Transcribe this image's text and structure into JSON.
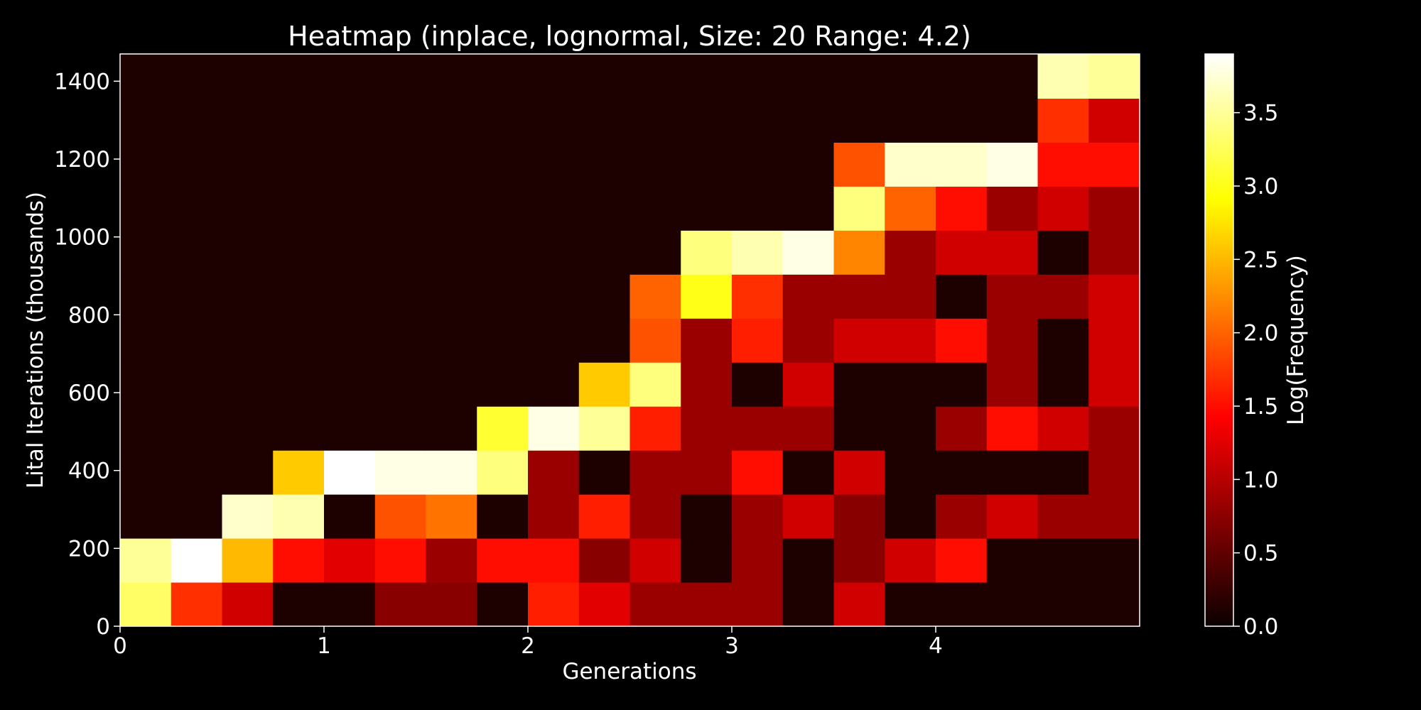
{
  "chart_data": {
    "type": "heatmap",
    "title": "Heatmap (inplace, lognormal, Size: 20 Range: 4.2)",
    "xlabel": "Generations",
    "ylabel": "Lital Iterations (thousands)",
    "colorbar_label": "Log(Frequency)",
    "colormap": "hot",
    "xlim": [
      0,
      5
    ],
    "ylim": [
      0,
      1470
    ],
    "clim": [
      0,
      3.9
    ],
    "x_ticks": [
      0,
      1,
      2,
      3,
      4
    ],
    "y_ticks": [
      0,
      200,
      400,
      600,
      800,
      1000,
      1200,
      1400
    ],
    "colorbar_ticks": [
      0.0,
      0.5,
      1.0,
      1.5,
      2.0,
      2.5,
      3.0,
      3.5
    ],
    "colorbar_tick_labels": [
      "0.0",
      "0.5",
      "1.0",
      "1.5",
      "2.0",
      "2.5",
      "3.0",
      "3.5"
    ],
    "x_bins": 20,
    "y_bins": 13,
    "x_bin_width": 0.25,
    "y_bin_width": 113,
    "values": [
      [
        3.3,
        1.7,
        1.1,
        0.1,
        0.1,
        0.7,
        0.7,
        0.1,
        1.6,
        1.2,
        0.8,
        0.8,
        0.8,
        0.1,
        1.1,
        0.1,
        0.1,
        0.1,
        0.1,
        0.1
      ],
      [
        3.5,
        3.9,
        2.5,
        1.5,
        1.2,
        1.5,
        0.8,
        1.5,
        1.5,
        0.7,
        1.1,
        0.1,
        0.8,
        0.1,
        0.7,
        1.1,
        1.5,
        0.1,
        0.1,
        0.1
      ],
      [
        0.1,
        0.1,
        3.7,
        3.6,
        0.1,
        1.9,
        2.1,
        0.1,
        0.8,
        1.6,
        0.8,
        0.1,
        0.8,
        1.1,
        0.7,
        0.1,
        0.8,
        1.1,
        0.8,
        0.8
      ],
      [
        0.1,
        0.1,
        0.1,
        2.6,
        3.9,
        3.8,
        3.8,
        3.4,
        0.8,
        0.1,
        0.8,
        0.8,
        1.5,
        0.1,
        1.1,
        0.1,
        0.1,
        0.1,
        0.1,
        0.8
      ],
      [
        0.1,
        0.1,
        0.1,
        0.1,
        0.1,
        0.1,
        0.1,
        3.1,
        3.8,
        3.5,
        1.6,
        0.8,
        0.8,
        0.8,
        0.1,
        0.1,
        0.8,
        1.5,
        1.1,
        0.8
      ],
      [
        0.1,
        0.1,
        0.1,
        0.1,
        0.1,
        0.1,
        0.1,
        0.1,
        0.1,
        2.6,
        3.4,
        0.8,
        0.1,
        1.1,
        0.1,
        0.1,
        0.1,
        0.8,
        0.1,
        1.1
      ],
      [
        0.1,
        0.1,
        0.1,
        0.1,
        0.1,
        0.1,
        0.1,
        0.1,
        0.1,
        0.1,
        1.9,
        0.8,
        1.6,
        0.8,
        1.1,
        1.1,
        1.5,
        0.8,
        0.1,
        1.1
      ],
      [
        0.1,
        0.1,
        0.1,
        0.1,
        0.1,
        0.1,
        0.1,
        0.1,
        0.1,
        0.1,
        2.0,
        3.0,
        1.7,
        0.8,
        0.8,
        0.8,
        0.1,
        0.8,
        0.8,
        1.1
      ],
      [
        0.1,
        0.1,
        0.1,
        0.1,
        0.1,
        0.1,
        0.1,
        0.1,
        0.1,
        0.1,
        0.1,
        3.4,
        3.6,
        3.8,
        2.2,
        0.8,
        1.1,
        1.1,
        0.1,
        0.8
      ],
      [
        0.1,
        0.1,
        0.1,
        0.1,
        0.1,
        0.1,
        0.1,
        0.1,
        0.1,
        0.1,
        0.1,
        0.1,
        0.1,
        0.1,
        3.4,
        2.0,
        1.5,
        0.8,
        1.1,
        0.8
      ],
      [
        0.1,
        0.1,
        0.1,
        0.1,
        0.1,
        0.1,
        0.1,
        0.1,
        0.1,
        0.1,
        0.1,
        0.1,
        0.1,
        0.1,
        1.9,
        3.7,
        3.7,
        3.8,
        1.5,
        1.5
      ],
      [
        0.1,
        0.1,
        0.1,
        0.1,
        0.1,
        0.1,
        0.1,
        0.1,
        0.1,
        0.1,
        0.1,
        0.1,
        0.1,
        0.1,
        0.1,
        0.1,
        0.1,
        0.1,
        1.7,
        1.1
      ],
      [
        0.1,
        0.1,
        0.1,
        0.1,
        0.1,
        0.1,
        0.1,
        0.1,
        0.1,
        0.1,
        0.1,
        0.1,
        0.1,
        0.1,
        0.1,
        0.1,
        0.1,
        0.1,
        3.6,
        3.5
      ]
    ]
  }
}
